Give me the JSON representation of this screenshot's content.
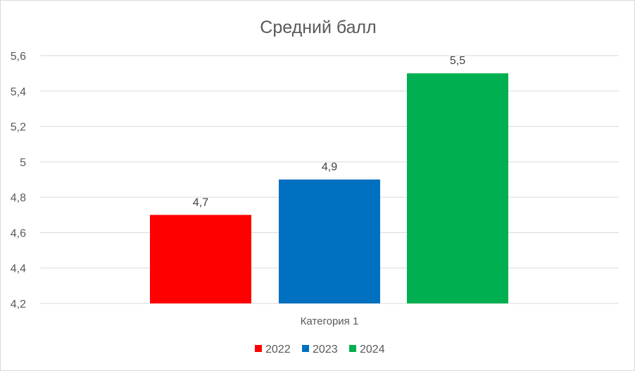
{
  "chart_data": {
    "type": "bar",
    "title": "Средний балл",
    "categories": [
      "Категория 1"
    ],
    "series": [
      {
        "name": "2022",
        "values": [
          4.7
        ],
        "color": "#ff0000"
      },
      {
        "name": "2023",
        "values": [
          4.9
        ],
        "color": "#0070c0"
      },
      {
        "name": "2024",
        "values": [
          5.5
        ],
        "color": "#00b050"
      }
    ],
    "data_labels": [
      "4,7",
      "4,9",
      "5,5"
    ],
    "ylim": [
      4.2,
      5.6
    ],
    "yticks": [
      4.2,
      4.4,
      4.6,
      4.8,
      5.0,
      5.2,
      5.4,
      5.6
    ],
    "ytick_labels": [
      "4,2",
      "4,4",
      "4,6",
      "4,8",
      "5",
      "5,2",
      "5,4",
      "5,6"
    ],
    "xlabel": "",
    "ylabel": "",
    "grid": true,
    "legend_position": "bottom"
  }
}
